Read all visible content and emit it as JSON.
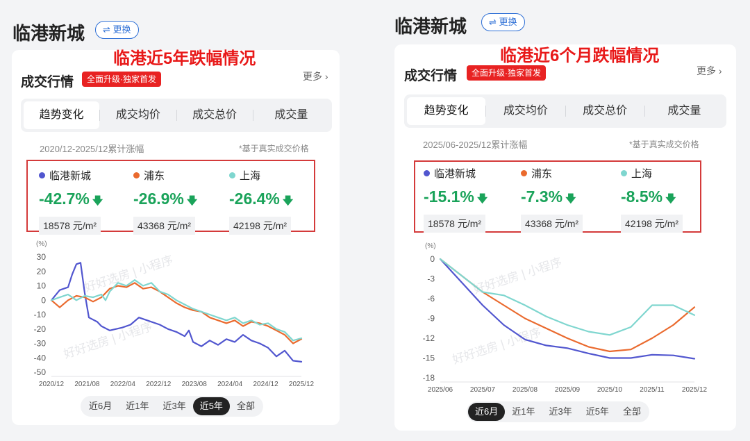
{
  "panels": [
    {
      "page_title": "临港新城",
      "swap_label": "⇌ 更换",
      "annotation": "临港近5年跌幅情况",
      "section_title": "成交行情",
      "badge": "全面升级·独家首发",
      "more": "更多 ›",
      "tabs": [
        {
          "label": "趋势变化",
          "active": true
        },
        {
          "label": "成交均价",
          "active": false
        },
        {
          "label": "成交总价",
          "active": false
        },
        {
          "label": "成交量",
          "active": false
        }
      ],
      "range_label": "2020/12-2025/12累计涨幅",
      "note": "*基于真实成交价格",
      "stats": [
        {
          "name": "临港新城",
          "color": "#5156cf",
          "change": "-42.7%",
          "price": "18578 元/m²"
        },
        {
          "name": "浦东",
          "color": "#ea6a2e",
          "change": "-26.9%",
          "price": "43368 元/m²"
        },
        {
          "name": "上海",
          "color": "#7fd6cf",
          "change": "-26.4%",
          "price": "42198 元/m²"
        }
      ],
      "periods": [
        {
          "label": "近6月",
          "active": false
        },
        {
          "label": "近1年",
          "active": false
        },
        {
          "label": "近3年",
          "active": false
        },
        {
          "label": "近5年",
          "active": true
        },
        {
          "label": "全部",
          "active": false
        }
      ],
      "watermark": "好好选房 | 小程序"
    },
    {
      "page_title": "临港新城",
      "swap_label": "⇌ 更换",
      "annotation": "临港近6个月跌幅情况",
      "section_title": "成交行情",
      "badge": "全面升级·独家首发",
      "more": "更多 ›",
      "tabs": [
        {
          "label": "趋势变化",
          "active": true
        },
        {
          "label": "成交均价",
          "active": false
        },
        {
          "label": "成交总价",
          "active": false
        },
        {
          "label": "成交量",
          "active": false
        }
      ],
      "range_label": "2025/06-2025/12累计涨幅",
      "note": "*基于真实成交价格",
      "stats": [
        {
          "name": "临港新城",
          "color": "#5156cf",
          "change": "-15.1%",
          "price": "18578 元/m²"
        },
        {
          "name": "浦东",
          "color": "#ea6a2e",
          "change": "-7.3%",
          "price": "43368 元/m²"
        },
        {
          "name": "上海",
          "color": "#7fd6cf",
          "change": "-8.5%",
          "price": "42198 元/m²"
        }
      ],
      "periods": [
        {
          "label": "近6月",
          "active": true
        },
        {
          "label": "近1年",
          "active": false
        },
        {
          "label": "近3年",
          "active": false
        },
        {
          "label": "近5年",
          "active": false
        },
        {
          "label": "全部",
          "active": false
        }
      ],
      "watermark": "好好选房 | 小程序"
    }
  ],
  "chart_data": [
    {
      "type": "line",
      "ylabel": "(%)",
      "ylim": [
        -50,
        30
      ],
      "yticks": [
        30,
        20,
        10,
        0,
        -10,
        -20,
        -30,
        -40,
        -50
      ],
      "xlabels": [
        "2020/12",
        "2021/08",
        "2022/04",
        "2022/12",
        "2023/08",
        "2024/04",
        "2024/12",
        "2025/12"
      ],
      "grid": false,
      "series": [
        {
          "name": "临港新城",
          "color": "#5156cf",
          "x": [
            0,
            2,
            4,
            5,
            6,
            7,
            8,
            9,
            11,
            12,
            14,
            17,
            19,
            21,
            23,
            26,
            28,
            30,
            32,
            33,
            34,
            36,
            38,
            40,
            42,
            44,
            46,
            48,
            50,
            52,
            54,
            56,
            58,
            60
          ],
          "y": [
            0,
            7,
            9,
            18,
            25,
            26,
            5,
            -12,
            -15,
            -18,
            -21,
            -19,
            -17,
            -12,
            -14,
            -17,
            -20,
            -22,
            -25,
            -21,
            -29,
            -32,
            -28,
            -31,
            -27,
            -29,
            -24,
            -28,
            -30,
            -33,
            -39,
            -35,
            -42,
            -42.7
          ]
        },
        {
          "name": "浦东",
          "color": "#ea6a2e",
          "x": [
            0,
            2,
            4,
            6,
            8,
            10,
            12,
            14,
            16,
            18,
            20,
            22,
            24,
            26,
            28,
            30,
            32,
            34,
            36,
            38,
            40,
            42,
            44,
            46,
            48,
            50,
            52,
            54,
            56,
            58,
            60
          ],
          "y": [
            0,
            -5,
            0,
            3,
            2,
            -1,
            2,
            8,
            10,
            9,
            12,
            8,
            9,
            6,
            2,
            -2,
            -5,
            -7,
            -8,
            -12,
            -14,
            -16,
            -14,
            -18,
            -15,
            -16,
            -18,
            -21,
            -24,
            -30,
            -26.9
          ]
        },
        {
          "name": "上海",
          "color": "#7fd6cf",
          "x": [
            0,
            2,
            4,
            6,
            8,
            10,
            12,
            13,
            14,
            16,
            18,
            20,
            22,
            24,
            26,
            28,
            30,
            32,
            34,
            36,
            38,
            40,
            42,
            44,
            46,
            48,
            50,
            52,
            54,
            56,
            58,
            60
          ],
          "y": [
            0,
            2,
            4,
            0,
            3,
            2,
            4,
            0,
            6,
            12,
            10,
            14,
            10,
            12,
            6,
            4,
            0,
            -3,
            -6,
            -8,
            -10,
            -12,
            -14,
            -12,
            -16,
            -14,
            -17,
            -16,
            -20,
            -22,
            -28,
            -26.4
          ]
        }
      ]
    },
    {
      "type": "line",
      "ylabel": "(%)",
      "ylim": [
        -18,
        0
      ],
      "yticks": [
        0,
        -3,
        -6,
        -9,
        -12,
        -15,
        -18
      ],
      "xlabels": [
        "2025/06",
        "2025/07",
        "2025/08",
        "2025/09",
        "2025/10",
        "2025/11",
        "2025/12"
      ],
      "grid": false,
      "series": [
        {
          "name": "临港新城",
          "color": "#5156cf",
          "x": [
            0,
            0.5,
            1,
            1.5,
            2,
            2.5,
            3,
            3.5,
            4,
            4.5,
            5,
            5.5,
            6
          ],
          "y": [
            0,
            -3.5,
            -7,
            -10,
            -12.2,
            -13.1,
            -13.5,
            -14.3,
            -15,
            -15,
            -14.5,
            -14.6,
            -15.1
          ]
        },
        {
          "name": "浦东",
          "color": "#ea6a2e",
          "x": [
            0,
            0.5,
            1,
            1.5,
            2,
            2.5,
            3,
            3.5,
            4,
            4.5,
            5,
            5.5,
            6
          ],
          "y": [
            0,
            -2.5,
            -5,
            -7,
            -9,
            -10.5,
            -12,
            -13.3,
            -14,
            -13.7,
            -12,
            -10,
            -7.3
          ]
        },
        {
          "name": "上海",
          "color": "#7fd6cf",
          "x": [
            0,
            0.5,
            1,
            1.5,
            2,
            2.5,
            3,
            3.5,
            4,
            4.5,
            5,
            5.5,
            6
          ],
          "y": [
            0,
            -2.5,
            -5,
            -5.5,
            -7,
            -8.7,
            -10,
            -11,
            -11.5,
            -10.3,
            -7,
            -7,
            -8.5
          ]
        }
      ]
    }
  ]
}
